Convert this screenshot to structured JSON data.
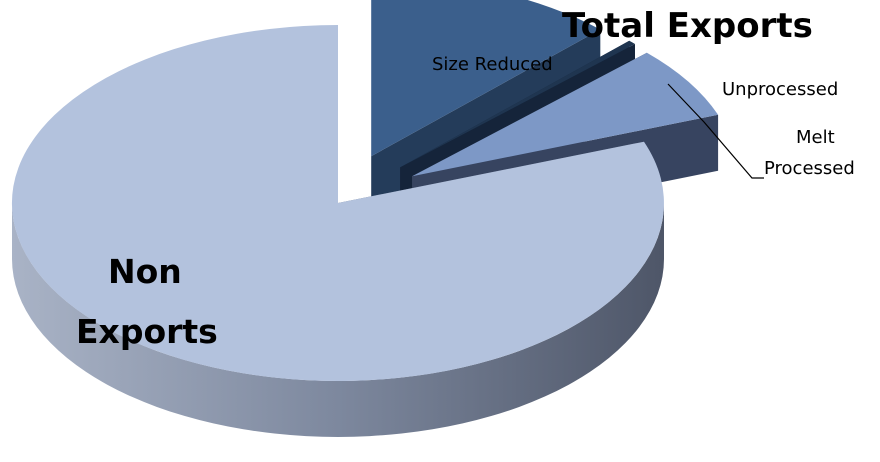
{
  "chart_data": {
    "type": "pie",
    "style": "3d-exploded",
    "title": "Total Exports",
    "slices": [
      {
        "label": "Size Reduced",
        "value": 12.4,
        "color": "#3b5f8c",
        "side_color": "#243c5a",
        "exploded": true
      },
      {
        "label": "Unprocessed",
        "value": 0.4,
        "color": "#1f3550",
        "side_color": "#15243a",
        "exploded": true
      },
      {
        "label": "Melt Processed",
        "value": 6.6,
        "color": "#7d98c6",
        "side_color": "#374460",
        "exploded": true
      },
      {
        "label": "Non Exports",
        "value": 80.6,
        "color": "#b3c2dd",
        "side_color": "#5f6a80",
        "exploded": false
      }
    ],
    "labels": {
      "title": "Total Exports",
      "non_exports_line1": "Non",
      "non_exports_line2": "Exports",
      "size_reduced": "Size Reduced",
      "unprocessed": "Unprocessed",
      "melt_line1": "Melt",
      "melt_line2": "Processed"
    },
    "legend": "none"
  }
}
